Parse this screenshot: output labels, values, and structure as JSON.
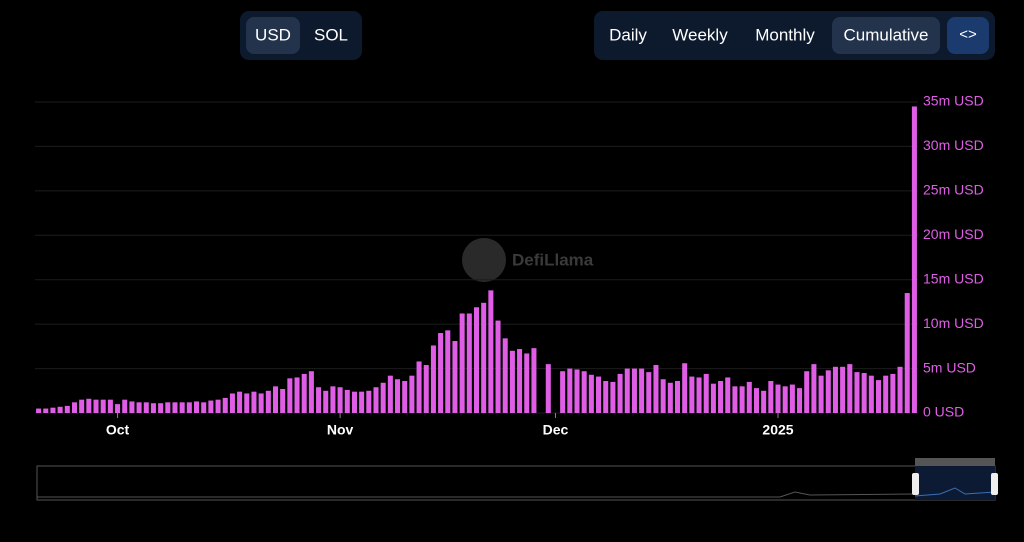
{
  "ui": {
    "currency": [
      "USD",
      "SOL"
    ],
    "periods": [
      "Daily",
      "Weekly",
      "Monthly",
      "Cumulative"
    ],
    "embed": "<>",
    "watermark": "DefiLlama"
  },
  "chart_data": {
    "type": "bar",
    "color": "#e05ee6",
    "grid": true,
    "categories": [
      null,
      null,
      null,
      null,
      null,
      null,
      null,
      null,
      null,
      null,
      null,
      "Oct",
      null,
      null,
      null,
      null,
      null,
      null,
      null,
      null,
      null,
      null,
      null,
      null,
      null,
      null,
      null,
      null,
      null,
      null,
      null,
      null,
      null,
      null,
      null,
      null,
      null,
      null,
      null,
      null,
      null,
      null,
      "Nov",
      null,
      null,
      null,
      null,
      null,
      null,
      null,
      null,
      null,
      null,
      null,
      null,
      null,
      null,
      null,
      null,
      null,
      null,
      null,
      null,
      null,
      null,
      null,
      null,
      null,
      null,
      null,
      null,
      null,
      "Dec",
      null,
      null,
      null,
      null,
      null,
      null,
      null,
      null,
      null,
      null,
      null,
      null,
      null,
      null,
      null,
      null,
      null,
      null,
      null,
      null,
      null,
      null,
      null,
      null,
      null,
      null,
      null,
      null,
      null,
      null,
      "2025",
      null,
      null,
      null,
      null,
      null,
      null,
      null,
      null,
      null,
      null,
      null,
      null,
      null,
      null,
      null,
      null,
      null,
      null,
      null
    ],
    "values": [
      500000,
      500000,
      600000,
      700000,
      800000,
      1200000,
      1500000,
      1600000,
      1500000,
      1500000,
      1500000,
      1000000,
      1500000,
      1300000,
      1200000,
      1200000,
      1100000,
      1100000,
      1200000,
      1200000,
      1200000,
      1200000,
      1300000,
      1200000,
      1400000,
      1500000,
      1700000,
      2200000,
      2400000,
      2200000,
      2400000,
      2200000,
      2500000,
      3000000,
      2700000,
      3900000,
      4000000,
      4400000,
      4700000,
      2900000,
      2500000,
      3000000,
      2900000,
      2600000,
      2400000,
      2400000,
      2500000,
      2900000,
      3400000,
      4200000,
      3800000,
      3600000,
      4200000,
      5800000,
      5400000,
      7600000,
      9000000,
      9300000,
      8100000,
      11200000,
      11200000,
      11900000,
      12400000,
      13800000,
      10400000,
      8400000,
      7000000,
      7200000,
      6700000,
      7300000,
      null,
      5500000,
      null,
      4700000,
      5000000,
      4900000,
      4700000,
      4300000,
      4100000,
      3600000,
      3500000,
      4400000,
      5000000,
      5000000,
      5000000,
      4600000,
      5400000,
      3800000,
      3400000,
      3600000,
      5600000,
      4100000,
      4000000,
      4400000,
      3300000,
      3600000,
      4000000,
      3000000,
      3000000,
      3500000,
      2800000,
      2500000,
      3600000,
      3200000,
      3000000,
      3200000,
      2800000,
      4700000,
      5500000,
      4200000,
      4800000,
      5200000,
      5200000,
      5500000,
      4600000,
      4500000,
      4200000,
      3700000,
      4200000,
      4400000,
      5200000,
      13500000,
      34500000
    ],
    "ylim": [
      0,
      35000000
    ],
    "yticks": [
      {
        "value": 0,
        "label": "0 USD"
      },
      {
        "value": 5000000,
        "label": "5m USD"
      },
      {
        "value": 10000000,
        "label": "10m USD"
      },
      {
        "value": 15000000,
        "label": "15m USD"
      },
      {
        "value": 20000000,
        "label": "20m USD"
      },
      {
        "value": 25000000,
        "label": "25m USD"
      },
      {
        "value": 30000000,
        "label": "30m USD"
      },
      {
        "value": 35000000,
        "label": "35m USD"
      }
    ]
  }
}
